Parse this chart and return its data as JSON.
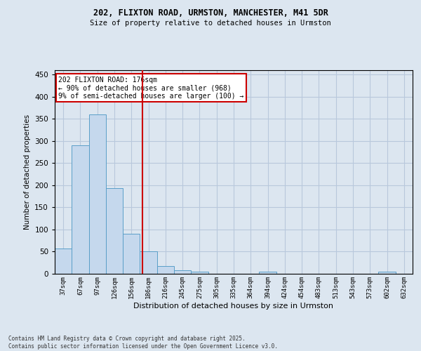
{
  "title_line1": "202, FLIXTON ROAD, URMSTON, MANCHESTER, M41 5DR",
  "title_line2": "Size of property relative to detached houses in Urmston",
  "xlabel": "Distribution of detached houses by size in Urmston",
  "ylabel": "Number of detached properties",
  "categories": [
    "37sqm",
    "67sqm",
    "97sqm",
    "126sqm",
    "156sqm",
    "186sqm",
    "216sqm",
    "245sqm",
    "275sqm",
    "305sqm",
    "335sqm",
    "364sqm",
    "394sqm",
    "424sqm",
    "454sqm",
    "483sqm",
    "513sqm",
    "543sqm",
    "573sqm",
    "602sqm",
    "632sqm"
  ],
  "values": [
    57,
    290,
    360,
    193,
    90,
    50,
    18,
    8,
    5,
    0,
    0,
    0,
    5,
    0,
    0,
    0,
    0,
    0,
    0,
    5,
    0
  ],
  "bar_color": "#c5d8ed",
  "bar_edge_color": "#5a9fc8",
  "grid_color": "#b8c8dc",
  "background_color": "#dce6f0",
  "vline_x": 4.65,
  "vline_color": "#cc0000",
  "annotation_text": "202 FLIXTON ROAD: 176sqm\n← 90% of detached houses are smaller (968)\n9% of semi-detached houses are larger (100) →",
  "annotation_box_color": "#ffffff",
  "annotation_box_edge": "#cc0000",
  "ylim": [
    0,
    460
  ],
  "yticks": [
    0,
    50,
    100,
    150,
    200,
    250,
    300,
    350,
    400,
    450
  ],
  "footer_line1": "Contains HM Land Registry data © Crown copyright and database right 2025.",
  "footer_line2": "Contains public sector information licensed under the Open Government Licence v3.0."
}
